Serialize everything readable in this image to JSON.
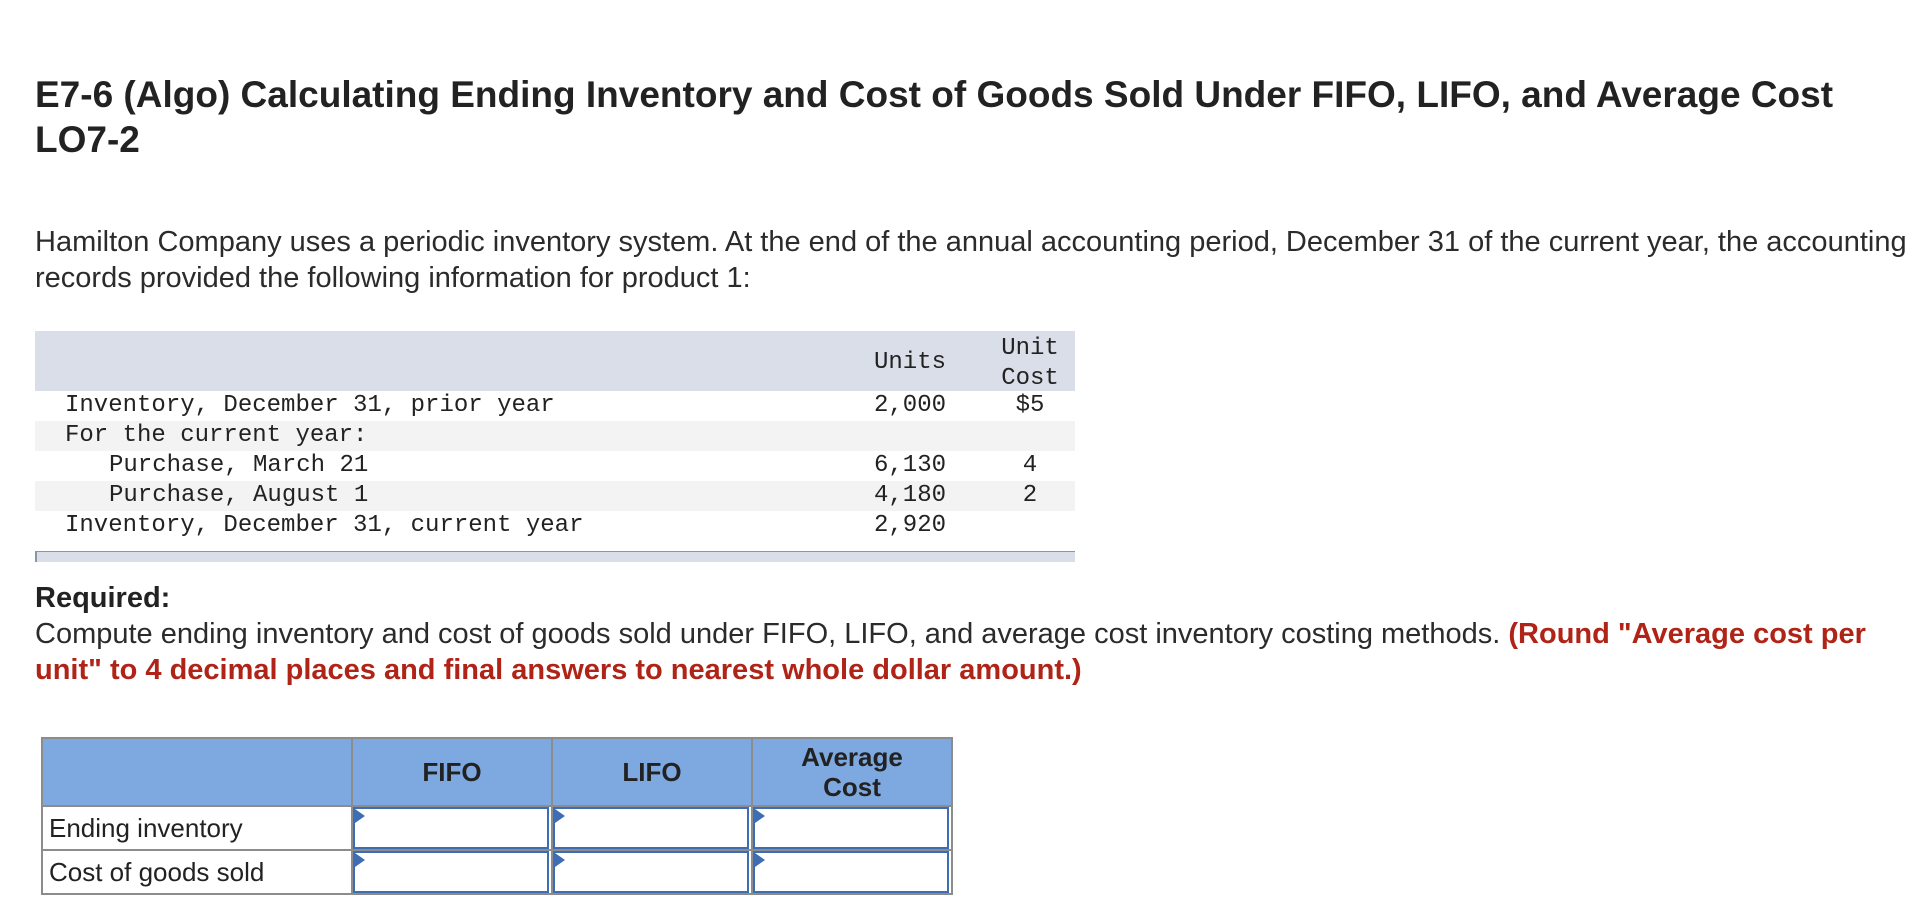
{
  "title": "E7-6 (Algo) Calculating Ending Inventory and Cost of Goods Sold Under FIFO, LIFO, and Average Cost LO7-2",
  "intro": "Hamilton Company uses a periodic inventory system. At the end of the annual accounting period, December 31 of the current year, the accounting records provided the following information for product 1:",
  "info_table": {
    "header_units": "Units",
    "header_cost_line1": "Unit",
    "header_cost_line2": "Cost",
    "rows": [
      {
        "label": "Inventory, December 31, prior year",
        "units": "2,000",
        "cost": "$5"
      },
      {
        "label": "For the current year:",
        "units": "",
        "cost": ""
      },
      {
        "label": "Purchase, March 21",
        "units": "6,130",
        "cost": "4"
      },
      {
        "label": "Purchase, August 1",
        "units": "4,180",
        "cost": "2"
      },
      {
        "label": "Inventory, December 31, current year",
        "units": "2,920",
        "cost": ""
      }
    ]
  },
  "required": {
    "label": "Required:",
    "text": "Compute ending inventory and cost of goods sold under FIFO, LIFO, and average cost inventory costing methods. ",
    "note": "(Round \"Average cost per unit\" to 4 decimal places and final answers to nearest whole dollar amount.)"
  },
  "answer_table": {
    "headers": [
      "FIFO",
      "LIFO",
      "Average Cost"
    ],
    "rows": [
      {
        "label": "Ending inventory",
        "values": [
          "",
          "",
          ""
        ]
      },
      {
        "label": "Cost of goods sold",
        "values": [
          "",
          "",
          ""
        ]
      }
    ]
  }
}
